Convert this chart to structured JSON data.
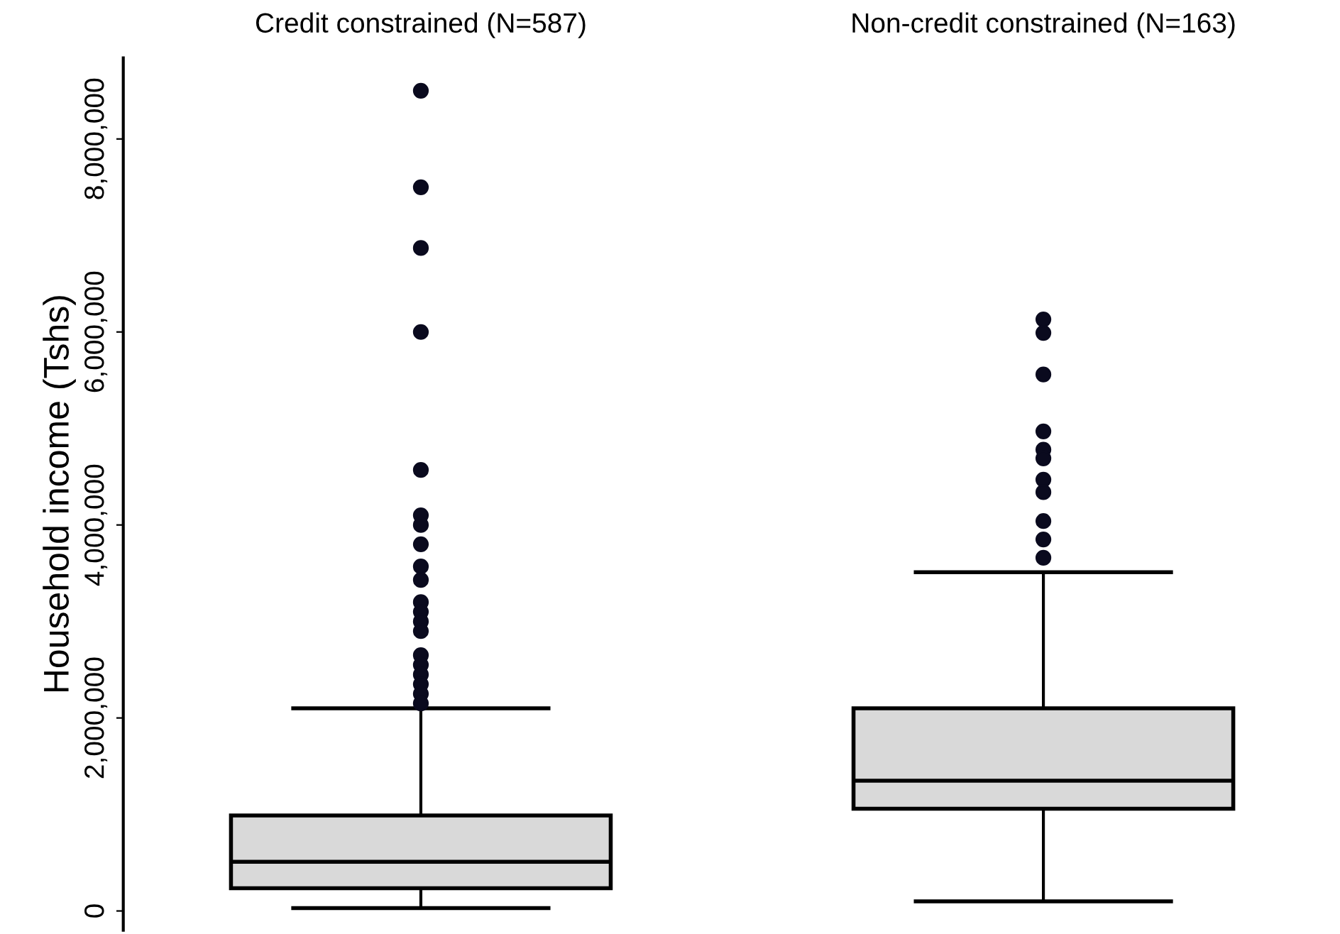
{
  "chart_data": {
    "type": "box",
    "categories": [
      "Credit constrained (N=587)",
      "Non-credit constrained (N=163)"
    ],
    "ylabel": "Household income (Tshs)",
    "ylim": [
      -200000,
      8840000
    ],
    "yticks": [
      0,
      {
        "value": 2000000,
        "label": "2,000,000"
      },
      {
        "value": 4000000,
        "label": "4,000,000"
      },
      {
        "value": 6000000,
        "label": "6,000,000"
      },
      {
        "value": 8000000,
        "label": "8,000,000"
      }
    ],
    "color": "#d9d9d9",
    "grid": false,
    "boxes": [
      {
        "low": 30000,
        "q1": 235000,
        "median": 510000,
        "q3": 990000,
        "high": 2100000,
        "outliers": [
          8500000,
          7500000,
          6870000,
          6000000,
          4570000,
          4100000,
          4000000,
          3800000,
          3570000,
          3430000,
          3200000,
          3100000,
          3000000,
          2900000,
          2650000,
          2550000,
          2450000,
          2350000,
          2250000,
          2150000
        ]
      },
      {
        "low": 100000,
        "q1": 1060000,
        "median": 1350000,
        "q3": 2100000,
        "high": 3510000,
        "outliers": [
          6130000,
          5990000,
          5560000,
          4970000,
          4780000,
          4690000,
          4470000,
          4340000,
          4040000,
          3850000,
          3660000
        ]
      }
    ]
  }
}
